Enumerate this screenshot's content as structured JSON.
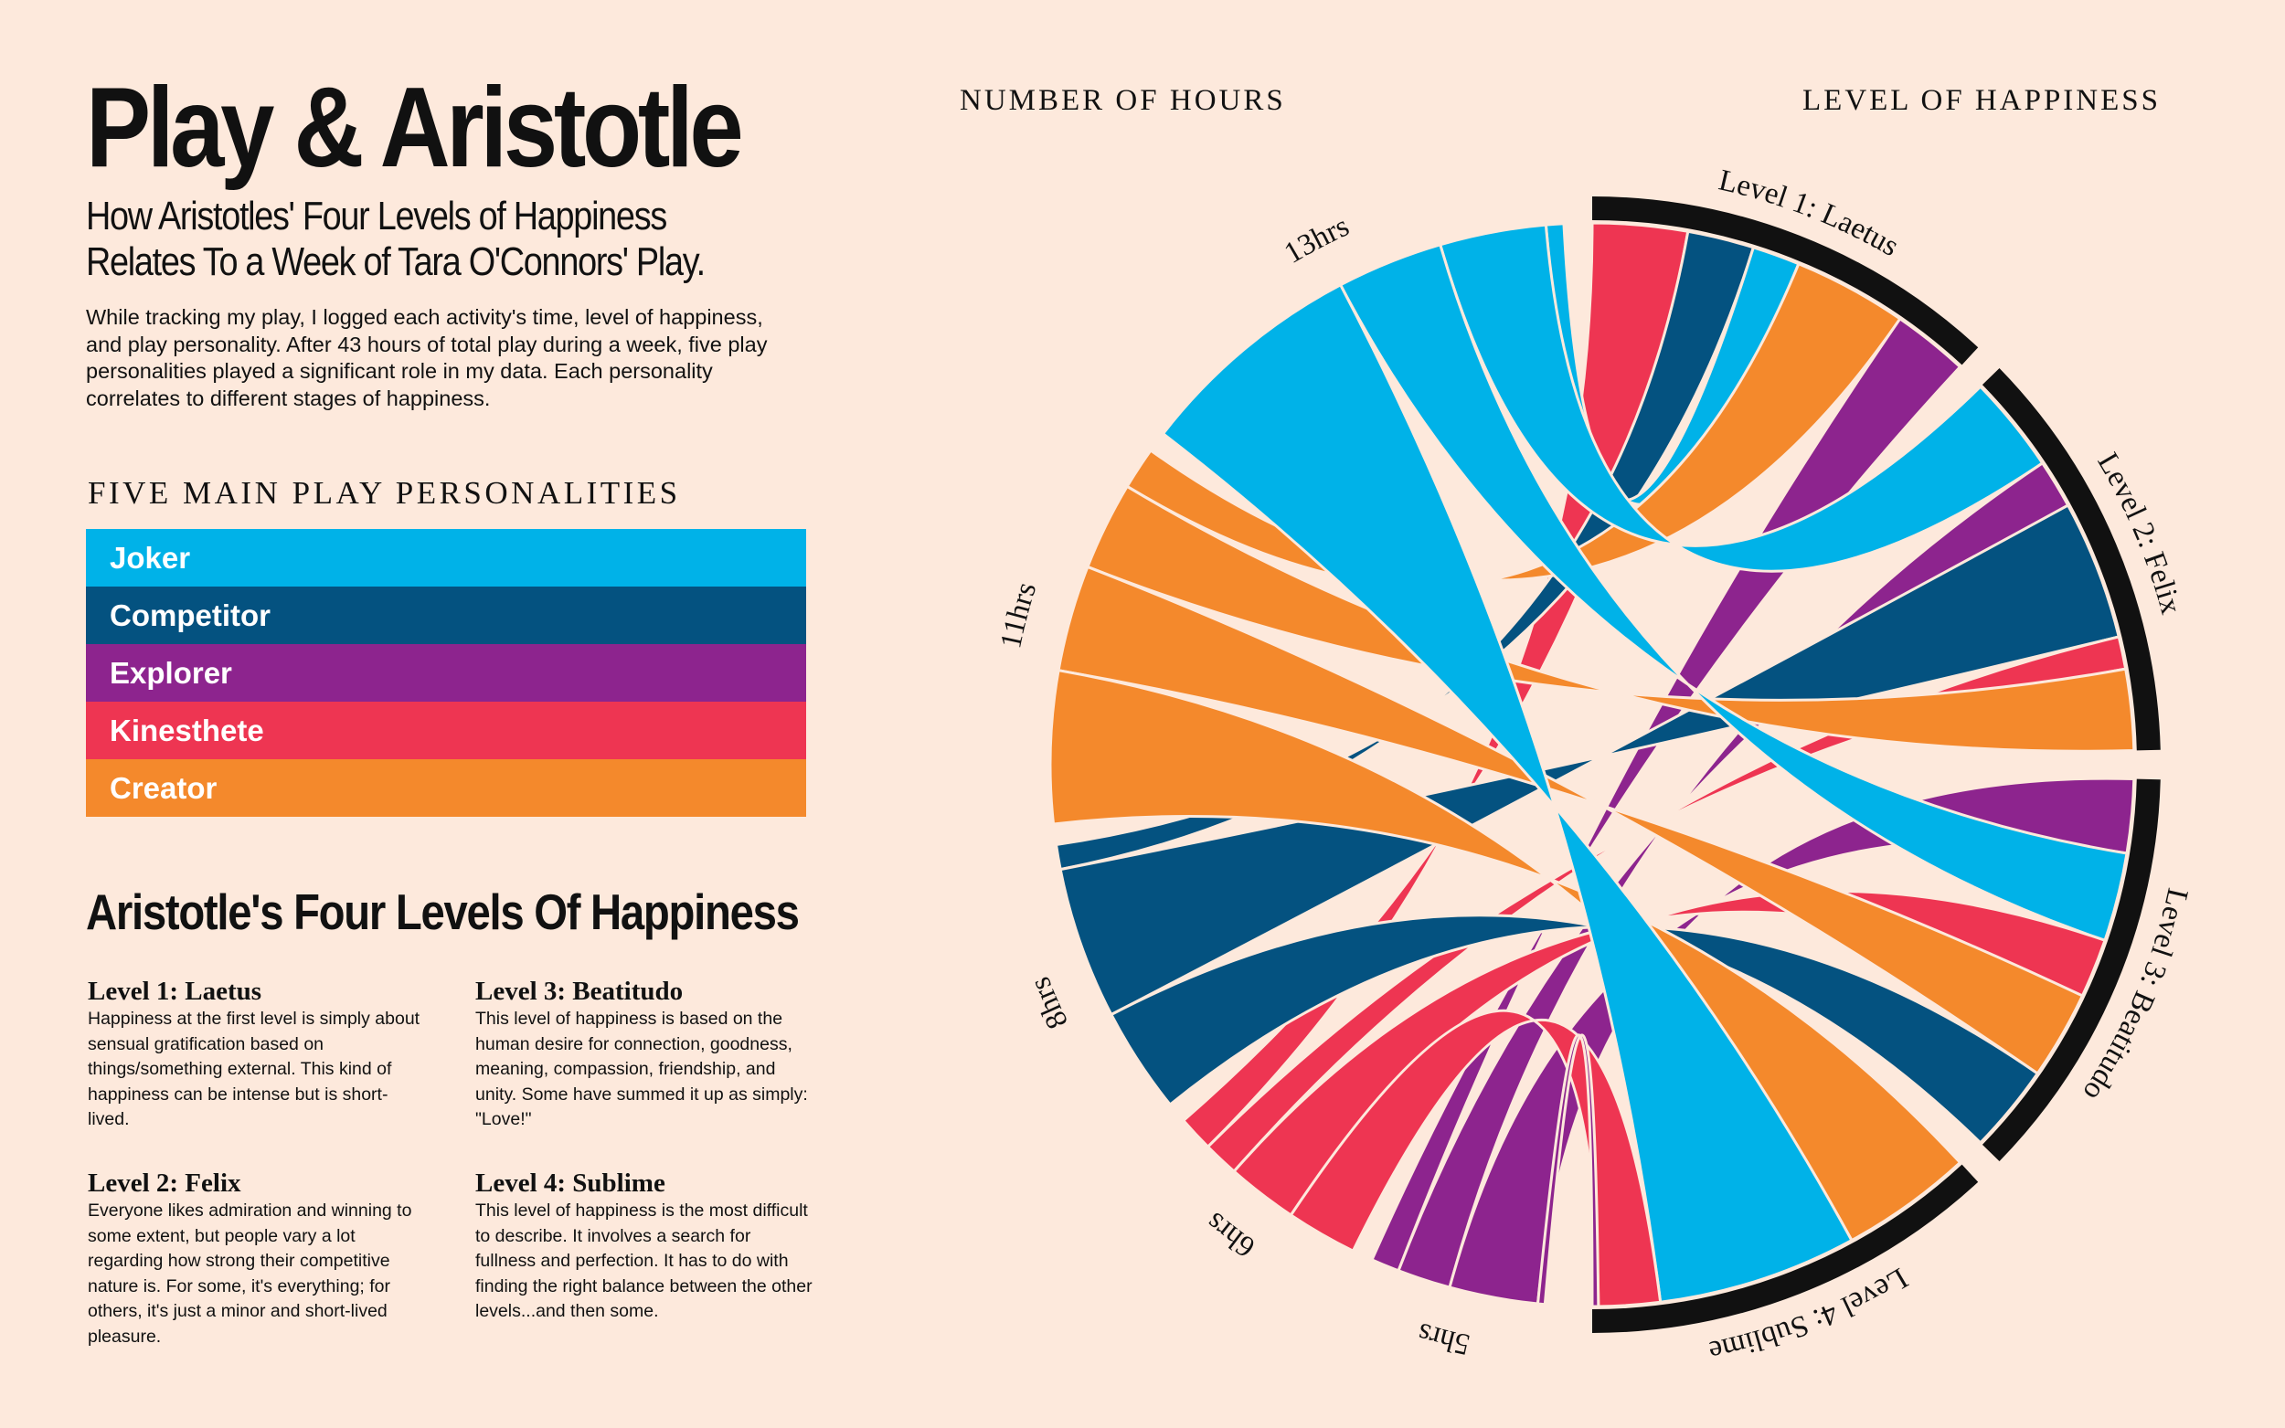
{
  "header": {
    "title": "Play & Aristotle",
    "subtitle_line1": "How Aristotles' Four Levels of Happiness",
    "subtitle_line2": "Relates To a Week of Tara O'Connors' Play.",
    "intro": "While tracking my play, I logged each activity's time, level of happiness, and play personality. After 43 hours of total play during a week, five play personalities played a significant role in my data. Each personality correlates to different stages of happiness."
  },
  "legend": {
    "title": "FIVE MAIN PLAY PERSONALITIES",
    "items": [
      {
        "label": "Joker",
        "color": "#00b2e8"
      },
      {
        "label": "Competitor",
        "color": "#045280"
      },
      {
        "label": "Explorer",
        "color": "#8d248e"
      },
      {
        "label": "Kinesthete",
        "color": "#ee3552"
      },
      {
        "label": "Creator",
        "color": "#f4892c"
      }
    ]
  },
  "levels_section": {
    "title": "Aristotle's Four Levels Of Happiness",
    "levels": [
      {
        "heading": "Level 1: Laetus",
        "text": "Happiness at the first level is simply about sensual gratification based on things/something external. This kind of happiness can be intense but is short-lived."
      },
      {
        "heading": "Level 2: Felix",
        "text": "Everyone likes admiration and winning to some extent, but people vary a lot regarding how strong their competitive nature is. For some, it's everything; for others, it's just a minor and short-lived pleasure."
      },
      {
        "heading": "Level 3: Beatitudo",
        "text": "This level of happiness is based on the human desire for connection, goodness, meaning, compassion, friendship, and unity. Some have summed it up as simply: \"Love!\""
      },
      {
        "heading": "Level 4: Sublime",
        "text": "This level of happiness is the most difficult to describe. It involves a search for fullness and perfection. It has to do with finding the right balance between the other levels...and then some."
      }
    ]
  },
  "chart_data": {
    "type": "chord",
    "left_axis_title": "NUMBER OF HOURS",
    "right_axis_title": "LEVEL OF HAPPINESS",
    "personalities": [
      {
        "name": "Joker",
        "hours": 13,
        "label": "13hrs",
        "color": "#00b2e8"
      },
      {
        "name": "Creator",
        "hours": 11,
        "label": "11hrs",
        "color": "#f4892c"
      },
      {
        "name": "Competitor",
        "hours": 8,
        "label": "8hrs",
        "color": "#045280"
      },
      {
        "name": "Kinesthete",
        "hours": 6,
        "label": "6hrs",
        "color": "#ee3552"
      },
      {
        "name": "Explorer",
        "hours": 5,
        "label": "5hrs",
        "color": "#8d248e"
      }
    ],
    "happiness_levels": [
      {
        "name": "Level 1:  Laetus",
        "weight": 1
      },
      {
        "name": "Level 2:  Felix",
        "weight": 1
      },
      {
        "name": "Level 3:  Beatitudo",
        "weight": 1
      },
      {
        "name": "Level 4:  Sublime",
        "weight": 1
      }
    ],
    "flows": [
      {
        "from": "Kinesthete",
        "to": "Level 1:  Laetus",
        "hours": 1
      },
      {
        "from": "Competitor",
        "to": "Level 1:  Laetus",
        "hours": 0.7
      },
      {
        "from": "Joker",
        "to": "Level 1:  Laetus",
        "hours": 0.5
      },
      {
        "from": "Creator",
        "to": "Level 1:  Laetus",
        "hours": 1.2
      },
      {
        "from": "Explorer",
        "to": "Level 1:  Laetus",
        "hours": 0.8
      },
      {
        "from": "Joker",
        "to": "Level 2:  Felix",
        "hours": 3
      },
      {
        "from": "Explorer",
        "to": "Level 2:  Felix",
        "hours": 1.5
      },
      {
        "from": "Competitor",
        "to": "Level 2:  Felix",
        "hours": 4.3
      },
      {
        "from": "Kinesthete",
        "to": "Level 2:  Felix",
        "hours": 1
      },
      {
        "from": "Creator",
        "to": "Level 2:  Felix",
        "hours": 2.5
      },
      {
        "from": "Explorer",
        "to": "Level 3:  Beatitudo",
        "hours": 2.5
      },
      {
        "from": "Joker",
        "to": "Level 3:  Beatitudo",
        "hours": 3
      },
      {
        "from": "Kinesthete",
        "to": "Level 3:  Beatitudo",
        "hours": 2
      },
      {
        "from": "Creator",
        "to": "Level 3:  Beatitudo",
        "hours": 3
      },
      {
        "from": "Competitor",
        "to": "Level 3:  Beatitudo",
        "hours": 3
      },
      {
        "from": "Creator",
        "to": "Level 4:  Sublime",
        "hours": 4.3
      },
      {
        "from": "Joker",
        "to": "Level 4:  Sublime",
        "hours": 6.5
      },
      {
        "from": "Kinesthete",
        "to": "Level 4:  Sublime",
        "hours": 2
      },
      {
        "from": "Explorer",
        "to": "Level 4:  Sublime",
        "hours": 0.2
      }
    ]
  }
}
